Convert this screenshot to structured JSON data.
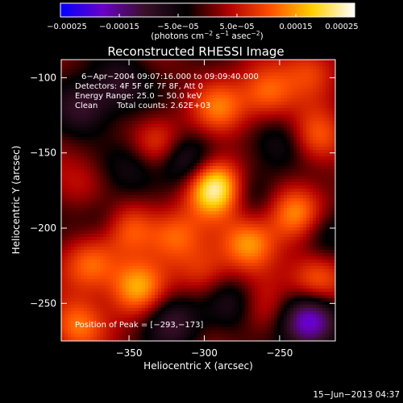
{
  "chart_data": {
    "type": "heatmap",
    "title": "Reconstructed RHESSI Image",
    "xlabel": "Heliocentric X (arcsec)",
    "ylabel": "Heliocentric Y (arcsec)",
    "xlim": [
      -395,
      -213
    ],
    "ylim": [
      -275,
      -88
    ],
    "xticks": [
      -350,
      -300,
      -250
    ],
    "yticks": [
      -100,
      -150,
      -200,
      -250
    ],
    "xtick_labels": [
      "−350",
      "−300",
      "−250"
    ],
    "ytick_labels": [
      "−100",
      "−150",
      "−200",
      "−250"
    ],
    "colorbar": {
      "range": [
        -0.00025,
        0.00025
      ],
      "ticks": [
        -0.00025,
        -0.00015,
        -5e-05,
        5e-05,
        0.00015,
        0.00025
      ],
      "tick_labels": [
        "−0.00025",
        "−0.00015",
        "−5.0e−05",
        "5.0e−05",
        "0.00015",
        "0.00025"
      ],
      "unit_main": "(photons cm",
      "unit_exp1": "−2",
      "unit_mid": " s",
      "unit_exp2": "−1",
      "unit_tail": " asec",
      "unit_exp3": "−2",
      "unit_close": ")",
      "colors": [
        "#0000ff",
        "#6a00c8",
        "#3a0f2a",
        "#000000",
        "#b00000",
        "#ff5000",
        "#ffd000",
        "#ffffff"
      ]
    },
    "annotations": {
      "time_range": "6−Apr−2004 09:07:16.000 to 09:09:40.000",
      "detectors": "Detectors: 4F 5F 6F 7F 8F, Att 0",
      "energy": "Energy Range: 25.0 − 50.0 keV",
      "clean": "Clean",
      "counts": "Total counts: 2.62E+03",
      "peak": "Position of Peak = [−293,−173]"
    },
    "peak": [
      -293,
      -173
    ],
    "sources": [
      {
        "x": -293,
        "y": -173,
        "v": 1.0
      },
      {
        "x": -240,
        "y": -190,
        "v": 0.55
      },
      {
        "x": -330,
        "y": -145,
        "v": 0.45
      },
      {
        "x": -270,
        "y": -210,
        "v": 0.6
      },
      {
        "x": -350,
        "y": -200,
        "v": 0.5
      },
      {
        "x": -320,
        "y": -205,
        "v": 0.45
      },
      {
        "x": -375,
        "y": -225,
        "v": 0.5
      },
      {
        "x": -345,
        "y": -240,
        "v": 0.6
      },
      {
        "x": -290,
        "y": -120,
        "v": 0.45
      },
      {
        "x": -258,
        "y": -110,
        "v": 0.5
      },
      {
        "x": -225,
        "y": -140,
        "v": 0.45
      },
      {
        "x": -225,
        "y": -235,
        "v": 0.55
      },
      {
        "x": -300,
        "y": -230,
        "v": 0.35
      },
      {
        "x": -385,
        "y": -265,
        "v": 0.5
      },
      {
        "x": -380,
        "y": -170,
        "v": 0.2
      },
      {
        "x": -230,
        "y": -95,
        "v": 0.35
      },
      {
        "x": -262,
        "y": -255,
        "v": 0.25
      },
      {
        "x": -355,
        "y": -105,
        "v": -0.35
      },
      {
        "x": -315,
        "y": -155,
        "v": -0.5
      },
      {
        "x": -345,
        "y": -160,
        "v": -0.3
      },
      {
        "x": -380,
        "y": -120,
        "v": -0.4
      },
      {
        "x": -230,
        "y": -262,
        "v": -0.85
      },
      {
        "x": -320,
        "y": -262,
        "v": -0.4
      },
      {
        "x": -282,
        "y": -250,
        "v": -0.35
      },
      {
        "x": -250,
        "y": -145,
        "v": -0.3
      },
      {
        "x": -365,
        "y": -195,
        "v": -0.3
      },
      {
        "x": -270,
        "y": -175,
        "v": -0.25
      },
      {
        "x": -220,
        "y": -205,
        "v": -0.3
      }
    ]
  },
  "footer": {
    "timestamp": "15−Jun−2013 04:37"
  }
}
